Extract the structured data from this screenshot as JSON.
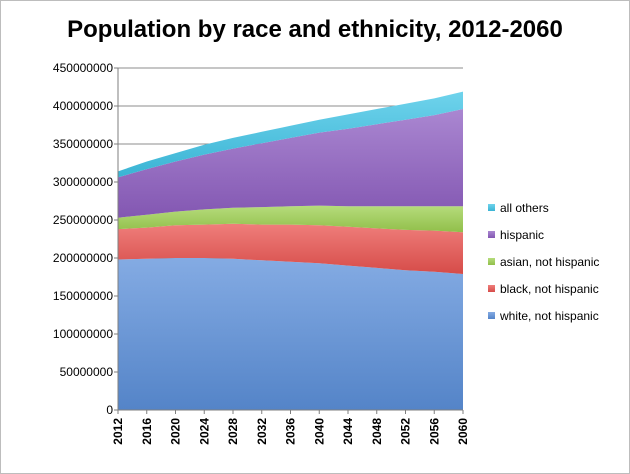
{
  "chart_data": {
    "type": "area",
    "stacked": true,
    "title": "Population by race and ethnicity, 2012-2060",
    "xlabel": "",
    "ylabel": "",
    "x": [
      2012,
      2016,
      2020,
      2024,
      2028,
      2032,
      2036,
      2040,
      2044,
      2048,
      2052,
      2056,
      2060
    ],
    "ylim": [
      0,
      450000000
    ],
    "yticks": [
      "0",
      "50000000",
      "100000000",
      "150000000",
      "200000000",
      "250000000",
      "300000000",
      "350000000",
      "400000000",
      "450000000"
    ],
    "grid": true,
    "legend_position": "right",
    "series": [
      {
        "name": "white, not hispanic",
        "color": "#5b8fd9",
        "values": [
          198000000,
          199000000,
          200000000,
          200000000,
          199000000,
          197000000,
          195000000,
          193000000,
          190000000,
          187000000,
          184000000,
          182000000,
          179000000
        ]
      },
      {
        "name": "black, not hispanic",
        "color": "#e9534f",
        "values": [
          40000000,
          41000000,
          43000000,
          44000000,
          46000000,
          47000000,
          49000000,
          50000000,
          51000000,
          52000000,
          53000000,
          54000000,
          55000000
        ]
      },
      {
        "name": "asian, not hispanic",
        "color": "#9ed050",
        "values": [
          15000000,
          17000000,
          18000000,
          20000000,
          21000000,
          23000000,
          24000000,
          26000000,
          27000000,
          29000000,
          31000000,
          32000000,
          34000000
        ]
      },
      {
        "name": "hispanic",
        "color": "#8e5fc2",
        "values": [
          53000000,
          60000000,
          66000000,
          72000000,
          78000000,
          84000000,
          90000000,
          96000000,
          102000000,
          108000000,
          114000000,
          120000000,
          128000000
        ]
      },
      {
        "name": "all others",
        "color": "#3fc4e6",
        "values": [
          8000000,
          10000000,
          11000000,
          13000000,
          14000000,
          15000000,
          16000000,
          17000000,
          19000000,
          20000000,
          21000000,
          22000000,
          23000000
        ]
      }
    ]
  }
}
